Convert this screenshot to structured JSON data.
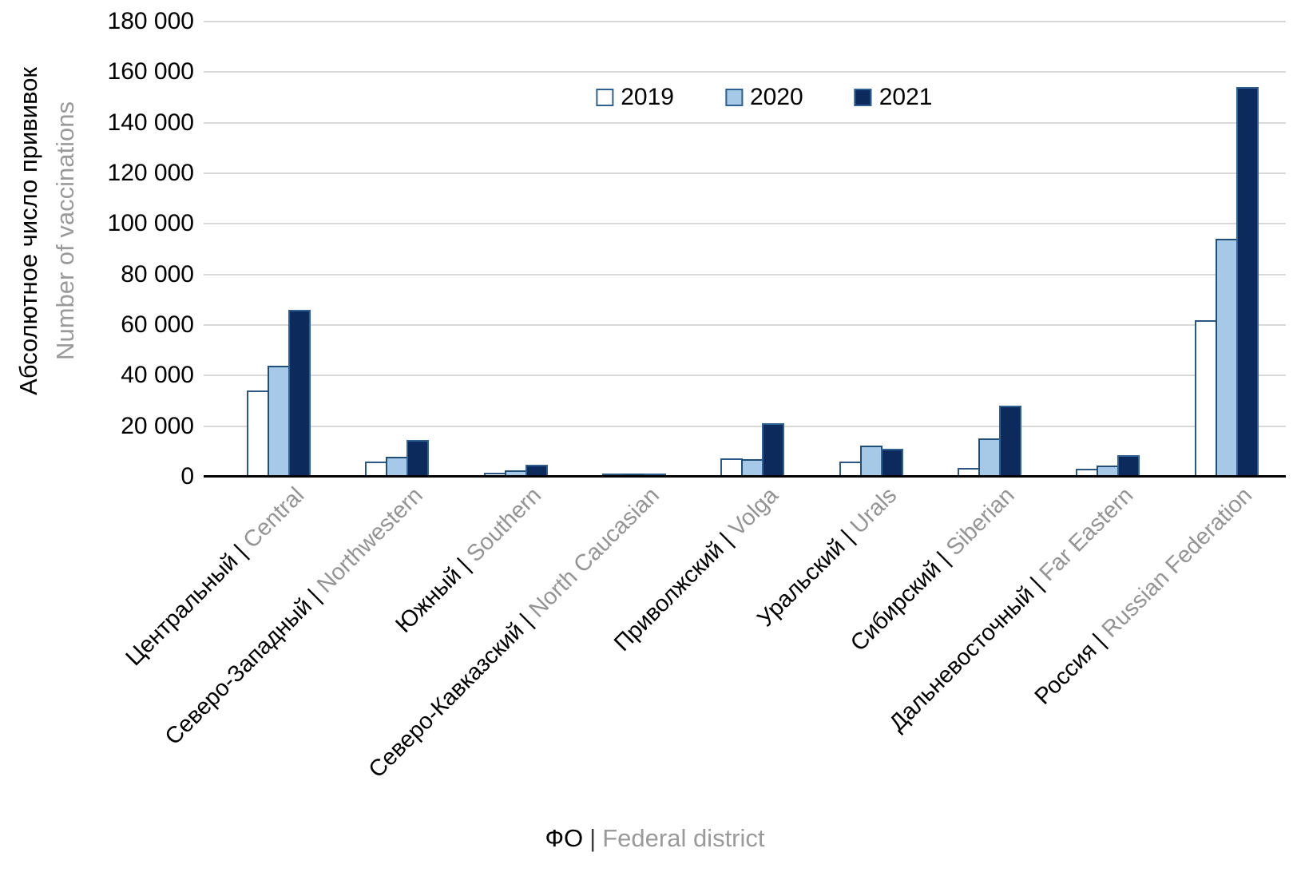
{
  "chart_data": {
    "type": "bar",
    "y_axis_title_ru": "Абсолютное число прививок",
    "y_axis_title_en": "Number of vaccinations",
    "x_axis_title_ru": "ФО",
    "x_axis_title_sep": "|",
    "x_axis_title_en": "Federal district",
    "ylim": [
      0,
      180000
    ],
    "y_tick_step": 20000,
    "y_tick_labels": [
      "0",
      "20 000",
      "40 000",
      "60 000",
      "80 000",
      "100 000",
      "120 000",
      "140 000",
      "160 000",
      "180 000"
    ],
    "grid": true,
    "legend_position": "top-center",
    "category_separator": "|",
    "categories": [
      {
        "ru": "Центральный",
        "en": "Central"
      },
      {
        "ru": "Северо-Западный",
        "en": "Northwestern"
      },
      {
        "ru": "Южный",
        "en": "Southern"
      },
      {
        "ru": "Северо-Кавказский",
        "en": "North Caucasian"
      },
      {
        "ru": "Приволжский",
        "en": "Volga"
      },
      {
        "ru": "Уральский",
        "en": "Urals"
      },
      {
        "ru": "Сибирский",
        "en": "Siberian"
      },
      {
        "ru": "Дальневосточный",
        "en": "Far Eastern"
      },
      {
        "ru": "Россия",
        "en": "Russian Federation"
      }
    ],
    "series": [
      {
        "name": "2019",
        "fill": "#FFFFFF",
        "border": "#2a5784",
        "values": [
          34000,
          6000,
          1600,
          200,
          7400,
          6000,
          3500,
          3200,
          62000
        ]
      },
      {
        "name": "2020",
        "fill": "#A6C9E8",
        "border": "#1f4e79",
        "values": [
          44000,
          8000,
          2500,
          500,
          7000,
          12300,
          15000,
          4500,
          94000
        ]
      },
      {
        "name": "2021",
        "fill": "#0D2A5C",
        "border": "#2e6093",
        "values": [
          66000,
          14500,
          4600,
          1000,
          21000,
          11200,
          28000,
          8500,
          154000
        ]
      }
    ]
  },
  "colors": {
    "background": "#FFFFFF",
    "gridline": "#D9D9D9",
    "axis_line": "#000000",
    "text_primary": "#000000",
    "text_secondary": "#9A9A9A"
  }
}
